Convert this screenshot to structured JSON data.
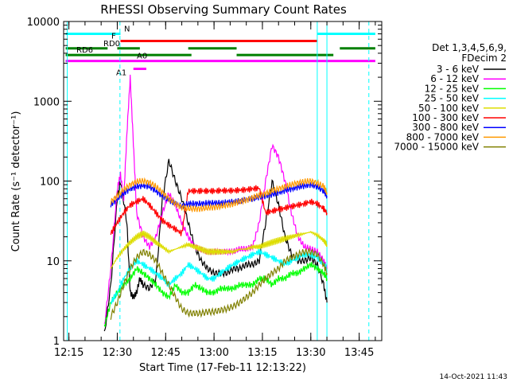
{
  "chart_data": {
    "type": "line",
    "title": "RHESSI Observing Summary Count Rates",
    "xlabel": "Start Time (17-Feb-11 12:13:22)",
    "ylabel": "Count Rate (s⁻¹ detector⁻¹)",
    "ylim": [
      1,
      10000
    ],
    "xlim": [
      "12:13:22",
      "13:52"
    ],
    "log_y": true,
    "x_ticks": [
      "12:15",
      "12:30",
      "12:45",
      "13:00",
      "13:15",
      "13:30",
      "13:45"
    ],
    "y_ticks": [
      "1",
      "10",
      "100",
      "1000",
      "10000"
    ],
    "legend_header": [
      "Det 1,3,4,5,6,9,",
      "FDecim 2"
    ],
    "legend_position": "right",
    "series": [
      {
        "name": "3 - 6 keV",
        "color": "#000000",
        "x": [
          "12:26",
          "12:28",
          "12:30",
          "12:31",
          "12:33",
          "12:34",
          "12:35",
          "12:36",
          "12:37",
          "12:38",
          "12:40",
          "12:42",
          "12:44",
          "12:46",
          "12:48",
          "12:50",
          "12:52",
          "12:54",
          "12:56",
          "12:58",
          "13:00",
          "13:02",
          "13:04",
          "13:06",
          "13:08",
          "13:10",
          "13:12",
          "13:14",
          "13:16",
          "13:18",
          "13:20",
          "13:22",
          "13:24",
          "13:26",
          "13:28",
          "13:30",
          "13:32",
          "13:34",
          "13:35"
        ],
        "y": [
          1.2,
          5,
          60,
          100,
          30,
          4,
          3.5,
          4,
          6,
          5,
          4.5,
          6,
          60,
          180,
          100,
          60,
          30,
          15,
          10,
          8,
          7,
          7,
          7,
          8,
          8,
          9,
          9,
          10,
          30,
          100,
          50,
          20,
          12,
          10,
          10,
          11,
          9,
          5,
          3
        ]
      },
      {
        "name": "6 - 12 keV",
        "color": "#ff00ff",
        "x": [
          "12:26",
          "12:28",
          "12:30",
          "12:31",
          "12:32",
          "12:33",
          "12:34",
          "12:35",
          "12:36",
          "12:38",
          "12:40",
          "12:42",
          "12:44",
          "12:46",
          "12:48",
          "12:50",
          "12:52",
          "12:54",
          "12:56",
          "12:58",
          "13:00",
          "13:02",
          "13:04",
          "13:06",
          "13:08",
          "13:10",
          "13:12",
          "13:14",
          "13:16",
          "13:18",
          "13:20",
          "13:22",
          "13:24",
          "13:26",
          "13:28",
          "13:30",
          "13:32",
          "13:34",
          "13:35"
        ],
        "y": [
          1.5,
          8,
          80,
          120,
          60,
          400,
          2000,
          300,
          40,
          20,
          15,
          20,
          40,
          70,
          50,
          30,
          20,
          15,
          14,
          13,
          13,
          13,
          13,
          13,
          14,
          14,
          15,
          30,
          100,
          280,
          200,
          100,
          40,
          20,
          15,
          14,
          13,
          10,
          8
        ]
      },
      {
        "name": "12 - 25 keV",
        "color": "#00ff00",
        "x": [
          "12:26",
          "12:28",
          "12:30",
          "12:32",
          "12:34",
          "12:36",
          "12:38",
          "12:40",
          "12:42",
          "12:44",
          "12:46",
          "12:48",
          "12:50",
          "12:52",
          "12:54",
          "12:56",
          "12:58",
          "13:00",
          "13:02",
          "13:04",
          "13:06",
          "13:08",
          "13:10",
          "13:12",
          "13:14",
          "13:16",
          "13:18",
          "13:20",
          "13:22",
          "13:24",
          "13:26",
          "13:28",
          "13:30",
          "13:32",
          "13:34",
          "13:35"
        ],
        "y": [
          1.5,
          3,
          4,
          5,
          6,
          8,
          7,
          6,
          5,
          4,
          3.5,
          5,
          4,
          4,
          5,
          4.5,
          4,
          4,
          4.5,
          4.5,
          4.5,
          5,
          5,
          5,
          6,
          6,
          5,
          6,
          6,
          7,
          7,
          8,
          9,
          8,
          7,
          6
        ]
      },
      {
        "name": "25 - 50 keV",
        "color": "#00ffff",
        "x": [
          "12:28",
          "12:30",
          "12:32",
          "12:34",
          "12:36",
          "12:38",
          "12:40",
          "12:42",
          "12:44",
          "12:46",
          "12:48",
          "12:50",
          "12:52",
          "12:54",
          "12:56",
          "12:58",
          "13:00",
          "13:02",
          "13:04",
          "13:06",
          "13:08",
          "13:10",
          "13:12",
          "13:14",
          "13:16",
          "13:18",
          "13:20",
          "13:22",
          "13:24",
          "13:26",
          "13:28",
          "13:30",
          "13:32",
          "13:34",
          "13:35"
        ],
        "y": [
          3,
          4,
          6,
          8,
          10,
          9,
          8,
          7,
          6,
          5,
          6,
          7,
          9,
          8,
          7,
          6,
          6,
          7,
          8,
          9,
          10,
          11,
          12,
          13,
          12,
          11,
          10,
          9,
          10,
          11,
          12,
          12,
          11,
          9,
          8
        ]
      },
      {
        "name": "50 - 100 keV",
        "color": "#dddd00",
        "x": [
          "12:28",
          "12:30",
          "12:32",
          "12:34",
          "12:36",
          "12:38",
          "12:40",
          "12:42",
          "12:44",
          "12:46",
          "12:48",
          "12:50",
          "12:52",
          "12:54",
          "12:56",
          "12:58",
          "13:00",
          "13:02",
          "13:04",
          "13:06",
          "13:08",
          "13:10",
          "13:12",
          "13:14",
          "13:16",
          "13:18",
          "13:20",
          "13:22",
          "13:24",
          "13:26",
          "13:28",
          "13:30",
          "13:32",
          "13:34",
          "13:35"
        ],
        "y": [
          8,
          11,
          14,
          17,
          20,
          22,
          20,
          17,
          15,
          13,
          14,
          15,
          16,
          15,
          14,
          13,
          13,
          13,
          13,
          13,
          14,
          14,
          15,
          15,
          16,
          17,
          18,
          19,
          20,
          21,
          22,
          23,
          21,
          18,
          16
        ]
      },
      {
        "name": "100 - 300 keV",
        "color": "#ff0000",
        "x": [
          "12:28",
          "12:30",
          "12:32",
          "12:34",
          "12:36",
          "12:38",
          "12:40",
          "12:42",
          "12:44",
          "12:46",
          "12:48",
          "12:50",
          "12:52",
          "12:54",
          "12:56",
          "12:58",
          "13:00",
          "13:02",
          "13:04",
          "13:06",
          "13:08",
          "13:10",
          "13:12",
          "13:14",
          "13:16",
          "13:18",
          "13:20",
          "13:22",
          "13:24",
          "13:26",
          "13:28",
          "13:30",
          "13:32",
          "13:34",
          "13:35"
        ],
        "y": [
          22,
          30,
          40,
          50,
          55,
          60,
          50,
          40,
          32,
          28,
          25,
          22,
          75,
          75,
          75,
          75,
          75,
          76,
          76,
          76,
          77,
          78,
          80,
          82,
          40,
          42,
          44,
          46,
          48,
          50,
          52,
          55,
          52,
          45,
          40
        ]
      },
      {
        "name": "300 - 800 keV",
        "color": "#0000ff",
        "x": [
          "12:28",
          "12:30",
          "12:32",
          "12:34",
          "12:36",
          "12:38",
          "12:40",
          "12:42",
          "12:44",
          "12:46",
          "12:48",
          "12:50",
          "12:52",
          "12:54",
          "12:56",
          "12:58",
          "13:00",
          "13:02",
          "13:04",
          "13:06",
          "13:08",
          "13:10",
          "13:12",
          "13:14",
          "13:16",
          "13:18",
          "13:20",
          "13:22",
          "13:24",
          "13:26",
          "13:28",
          "13:30",
          "13:32",
          "13:34",
          "13:35"
        ],
        "y": [
          50,
          60,
          70,
          80,
          85,
          88,
          85,
          75,
          65,
          58,
          52,
          48,
          52,
          52,
          52,
          53,
          53,
          53,
          54,
          55,
          56,
          58,
          60,
          63,
          65,
          68,
          72,
          76,
          80,
          84,
          87,
          90,
          85,
          75,
          65
        ]
      },
      {
        "name": "800 - 7000 keV",
        "color": "#ff9900",
        "x": [
          "12:28",
          "12:30",
          "12:32",
          "12:34",
          "12:36",
          "12:38",
          "12:40",
          "12:42",
          "12:44",
          "12:46",
          "12:48",
          "12:50",
          "12:52",
          "12:54",
          "12:56",
          "12:58",
          "13:00",
          "13:02",
          "13:04",
          "13:06",
          "13:08",
          "13:10",
          "13:12",
          "13:14",
          "13:16",
          "13:18",
          "13:20",
          "13:22",
          "13:24",
          "13:26",
          "13:28",
          "13:30",
          "13:32",
          "13:34",
          "13:35"
        ],
        "y": [
          55,
          65,
          78,
          90,
          98,
          100,
          96,
          85,
          72,
          60,
          52,
          47,
          45,
          45,
          45,
          46,
          47,
          48,
          50,
          52,
          55,
          58,
          62,
          66,
          70,
          75,
          80,
          85,
          90,
          95,
          98,
          100,
          95,
          85,
          72
        ]
      },
      {
        "name": "7000 - 15000 keV",
        "color": "#808000",
        "x": [
          "12:28",
          "12:30",
          "12:32",
          "12:34",
          "12:36",
          "12:38",
          "12:40",
          "12:42",
          "12:44",
          "12:46",
          "12:48",
          "12:50",
          "12:52",
          "12:54",
          "12:56",
          "12:58",
          "13:00",
          "13:02",
          "13:04",
          "13:06",
          "13:08",
          "13:10",
          "13:12",
          "13:14",
          "13:16",
          "13:18",
          "13:20",
          "13:22",
          "13:24",
          "13:26",
          "13:28",
          "13:30",
          "13:32",
          "13:34",
          "13:35"
        ],
        "y": [
          2,
          3,
          5,
          8,
          11,
          13,
          12,
          10,
          7,
          5,
          3.5,
          2.5,
          2.2,
          2.2,
          2.2,
          2.3,
          2.3,
          2.4,
          2.5,
          2.7,
          3,
          3.5,
          4,
          5,
          6,
          7,
          8,
          10,
          11,
          12,
          13,
          13,
          12,
          9,
          7
        ]
      }
    ],
    "flags": [
      {
        "label": "N",
        "color": "#00ffff",
        "y": 7000,
        "segments": [
          [
            "12:14",
            "12:31"
          ],
          [
            "13:32",
            "13:50"
          ]
        ]
      },
      {
        "label": "F",
        "color": "#ff0000",
        "y": 5700,
        "segments": [
          [
            "12:31",
            "13:32"
          ]
        ]
      },
      {
        "label": "RD0",
        "color": "#008000",
        "y": 4600,
        "segments": [
          [
            "12:14",
            "12:27"
          ],
          [
            "12:30",
            "12:37"
          ],
          [
            "12:52",
            "13:07"
          ],
          [
            "13:39",
            "13:50"
          ]
        ]
      },
      {
        "label": "RD6",
        "color": "#008000",
        "y": 3800,
        "segments": [
          [
            "12:14",
            "12:53"
          ],
          [
            "13:07",
            "13:37"
          ]
        ]
      },
      {
        "label": "A0",
        "color": "#ff00ff",
        "y": 3200,
        "segments": [
          [
            "12:14",
            "13:50"
          ]
        ]
      },
      {
        "label": "A1",
        "color": "#ff00ff",
        "y": 2550,
        "segments": [
          [
            "12:35",
            "12:39"
          ]
        ]
      }
    ],
    "vertical_markers": [
      {
        "color": "#00ffff",
        "style": "solid",
        "x": "12:14:30"
      },
      {
        "color": "#00ffff",
        "style": "dashed",
        "x": "12:30:50"
      },
      {
        "color": "#00ffff",
        "style": "solid",
        "x": "13:32:00"
      },
      {
        "color": "#00ffff",
        "style": "solid",
        "x": "13:35:00"
      },
      {
        "color": "#00ffff",
        "style": "dashed",
        "x": "13:48:00"
      }
    ]
  },
  "footer_stamp": "14-Oct-2021 11:43"
}
